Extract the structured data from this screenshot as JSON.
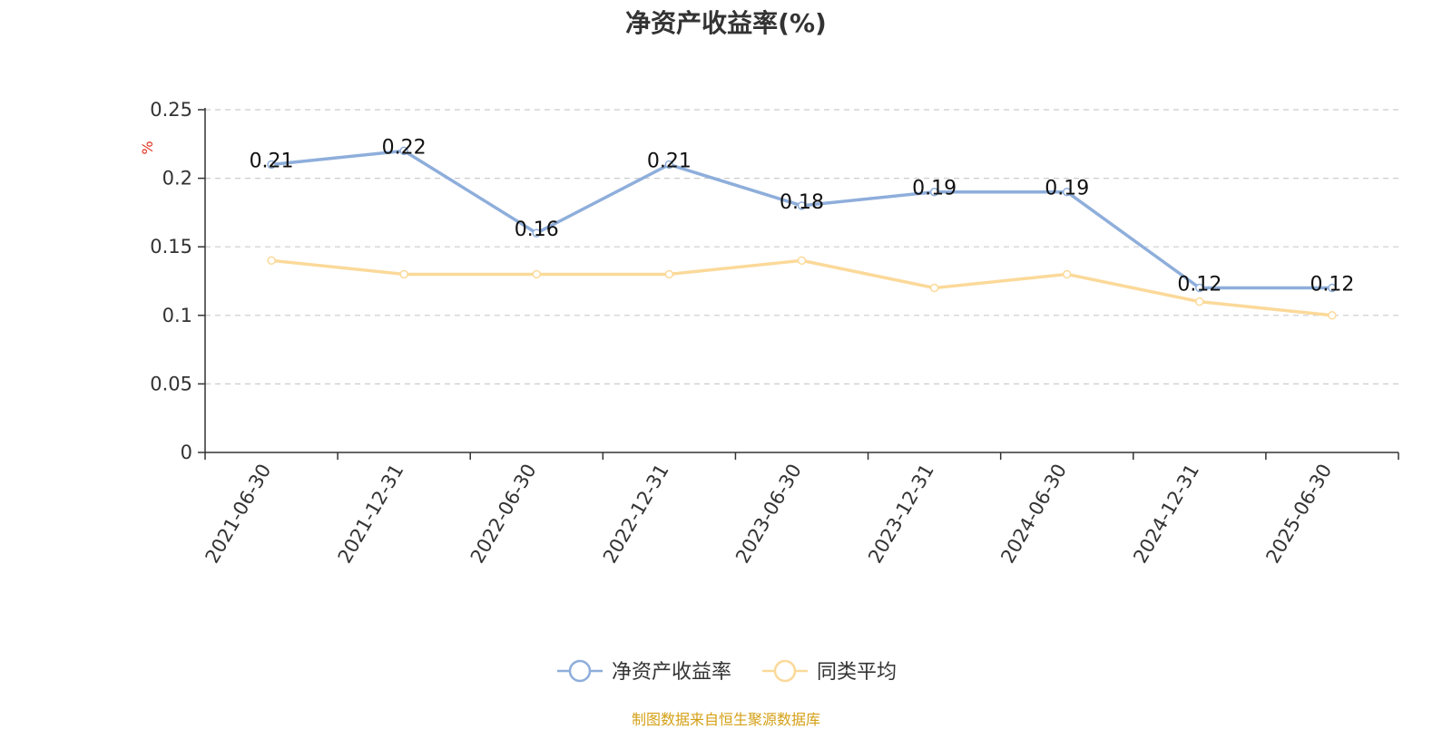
{
  "chart_data": {
    "type": "line",
    "title": "净资产收益率(%)",
    "ylabel": "%",
    "xlabel": "",
    "ylim": [
      0,
      0.25
    ],
    "yticks": [
      0,
      0.05,
      0.1,
      0.15,
      0.2,
      0.25
    ],
    "ytick_labels": [
      "0",
      "0.05",
      "0.1",
      "0.15",
      "0.2",
      "0.25"
    ],
    "grid": "horizontal dashed",
    "legend_position": "bottom-center",
    "categories": [
      "2021-06-30",
      "2021-12-31",
      "2022-06-30",
      "2022-12-31",
      "2023-06-30",
      "2023-12-31",
      "2024-06-30",
      "2024-12-31",
      "2025-06-30"
    ],
    "series": [
      {
        "name": "净资产收益率",
        "color": "#8eaedb",
        "show_labels": true,
        "values": [
          0.21,
          0.22,
          0.16,
          0.21,
          0.18,
          0.19,
          0.19,
          0.12,
          0.12
        ]
      },
      {
        "name": "同类平均",
        "color": "#fbd999",
        "show_labels": false,
        "values": [
          0.14,
          0.13,
          0.13,
          0.13,
          0.14,
          0.12,
          0.13,
          0.11,
          0.1
        ]
      }
    ]
  },
  "footer": {
    "source": "制图数据来自恒生聚源数据库"
  }
}
